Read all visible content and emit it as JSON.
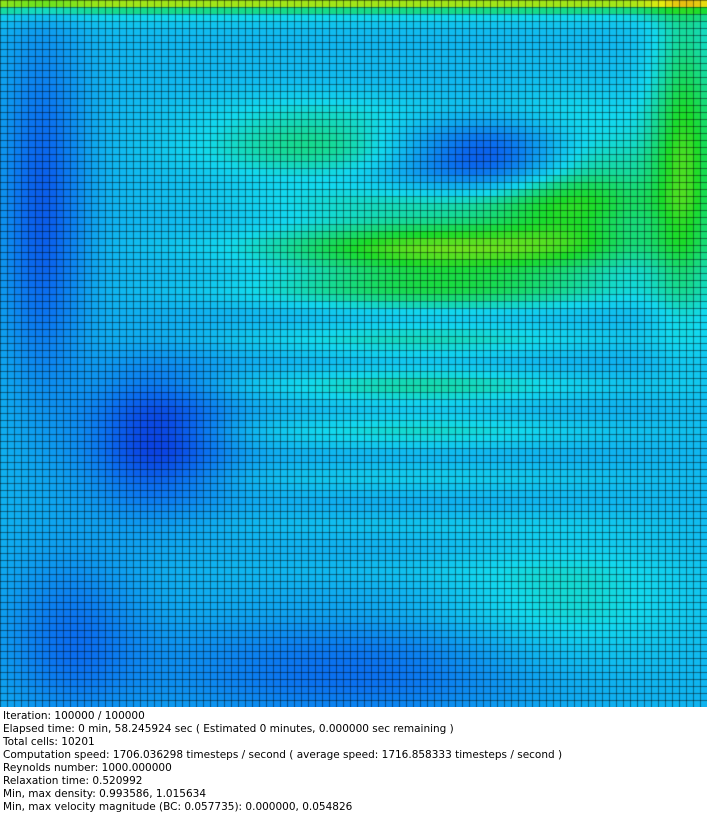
{
  "simulation": {
    "field": "velocity magnitude",
    "colormap": [
      "#0a1fd8",
      "#0a6ef0",
      "#12d8ee",
      "#1adc2a",
      "#e8ec10",
      "#e21414"
    ],
    "grid_color": "#000000"
  },
  "stats": {
    "iteration": "Iteration: 100000 / 100000",
    "elapsed": "Elapsed time: 0 min, 58.245924 sec ( Estimated 0 minutes, 0.000000 sec remaining )",
    "total_cells": "Total cells: 10201",
    "speed": "Computation speed: 1706.036298 timesteps / second ( average speed: 1716.858333 timesteps / second )",
    "reynolds": "Reynolds number: 1000.000000",
    "relaxation": "Relaxation time: 0.520992",
    "density": "Min, max density: 0.993586, 1.015634",
    "velocity": "Min, max velocity magnitude (BC: 0.057735): 0.000000, 0.054826"
  }
}
